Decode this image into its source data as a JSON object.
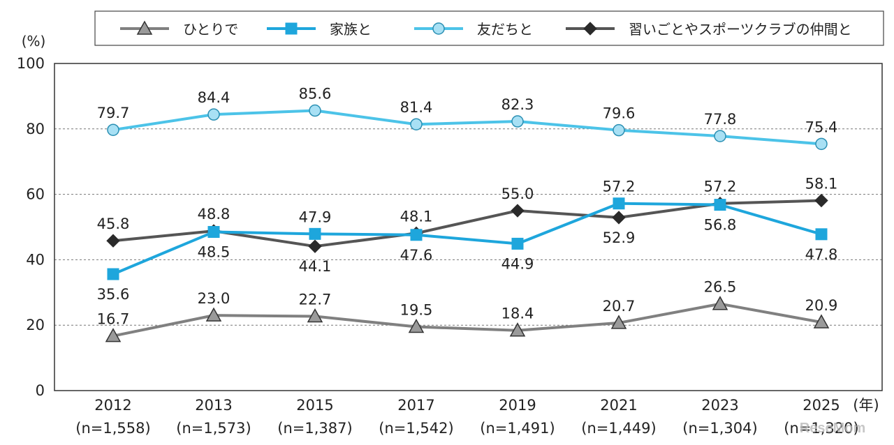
{
  "chart_data": {
    "type": "line",
    "title": "",
    "ylabel": "(%)",
    "xlabel": "(年)",
    "ylim": [
      0,
      100
    ],
    "yticks": [
      0,
      20,
      40,
      60,
      80,
      100
    ],
    "categories": [
      "2012",
      "2013",
      "2015",
      "2017",
      "2019",
      "2021",
      "2023",
      "2025"
    ],
    "sample_sizes": [
      "(n=1,558)",
      "(n=1,573)",
      "(n=1,387)",
      "(n=1,542)",
      "(n=1,491)",
      "(n=1,449)",
      "(n=1,304)",
      "(n=1,320)"
    ],
    "legend_position": "top",
    "series": [
      {
        "name": "ひとりで",
        "marker": "triangle",
        "line_color": "#808080",
        "marker_fill": "#9a9a9a",
        "values": [
          16.7,
          23.0,
          22.7,
          19.5,
          18.4,
          20.7,
          26.5,
          20.9
        ],
        "labels": [
          "16.7",
          "23.0",
          "22.7",
          "19.5",
          "18.4",
          "20.7",
          "26.5",
          "20.9"
        ],
        "label_pos": [
          "above",
          "above",
          "above",
          "above",
          "above",
          "above",
          "above",
          "above"
        ]
      },
      {
        "name": "家族と",
        "marker": "square",
        "line_color": "#1ea6dc",
        "marker_fill": "#1ea6dc",
        "values": [
          35.6,
          48.5,
          47.9,
          47.6,
          44.9,
          57.2,
          56.8,
          47.8
        ],
        "labels": [
          "35.6",
          "48.5",
          "47.9",
          "47.6",
          "44.9",
          "57.2",
          "56.8",
          "47.8"
        ],
        "label_pos": [
          "below",
          "below",
          "above",
          "below",
          "below",
          "above",
          "below",
          "below"
        ]
      },
      {
        "name": "友だちと",
        "marker": "circle",
        "line_color": "#4cc3e8",
        "marker_fill": "#a8e0f4",
        "values": [
          79.7,
          84.4,
          85.6,
          81.4,
          82.3,
          79.6,
          77.8,
          75.4
        ],
        "labels": [
          "79.7",
          "84.4",
          "85.6",
          "81.4",
          "82.3",
          "79.6",
          "77.8",
          "75.4"
        ],
        "label_pos": [
          "above",
          "above",
          "above",
          "above",
          "above",
          "above",
          "above",
          "above"
        ]
      },
      {
        "name": "習いごとやスポーツクラブの仲間と",
        "marker": "diamond",
        "line_color": "#555555",
        "marker_fill": "#2a2a2a",
        "values": [
          45.8,
          48.8,
          44.1,
          48.1,
          55.0,
          52.9,
          57.2,
          58.1
        ],
        "labels": [
          "45.8",
          "48.8",
          "44.1",
          "48.1",
          "55.0",
          "52.9",
          "57.2",
          "58.1"
        ],
        "label_pos": [
          "above",
          "above",
          "below",
          "above",
          "above",
          "below",
          "above",
          "above"
        ]
      }
    ]
  },
  "watermark": "ReseMom"
}
